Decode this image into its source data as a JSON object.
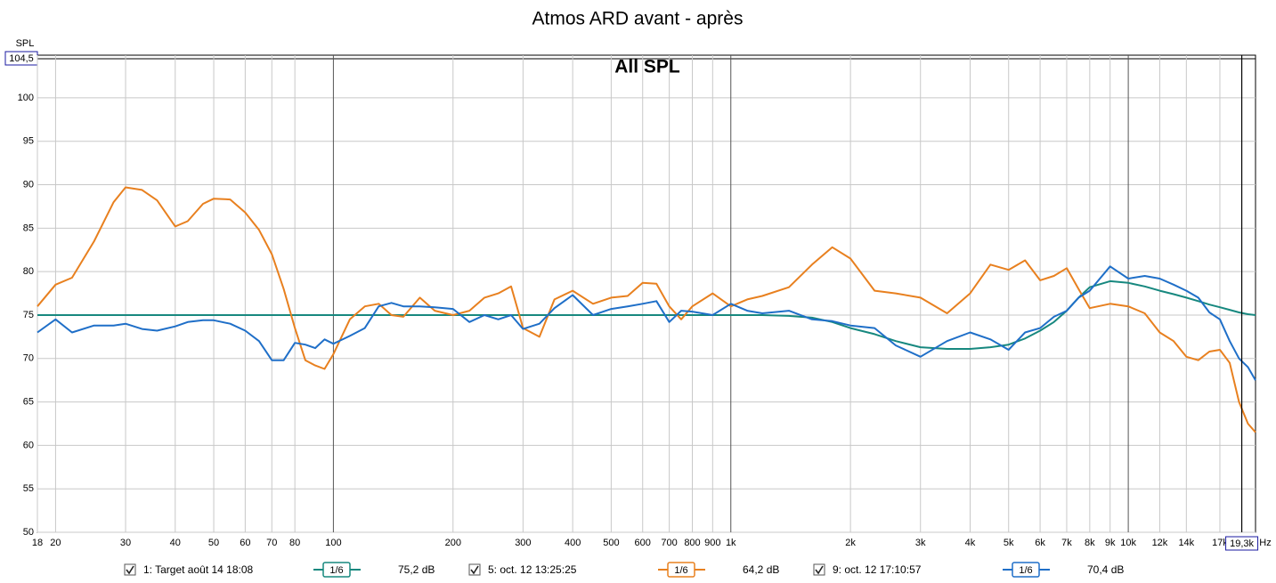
{
  "chart_data": {
    "type": "line",
    "title": "Atmos ARD avant - après",
    "annotation": "All SPL",
    "y_label": "SPL",
    "x_label": "Hz",
    "x_log": true,
    "grid": true,
    "xlim": [
      18,
      20900
    ],
    "ylim": [
      50,
      104.5
    ],
    "yticks": [
      50,
      55,
      60,
      65,
      70,
      75,
      80,
      85,
      90,
      95,
      100
    ],
    "y_readout": {
      "value": 104.5,
      "label": "104,5"
    },
    "x_cursor": {
      "value": 19300,
      "label": "19,3k"
    },
    "xticks": [
      18,
      20,
      30,
      40,
      50,
      60,
      70,
      80,
      100,
      200,
      300,
      400,
      500,
      600,
      700,
      800,
      900,
      {
        "value": 1000,
        "label": "1k"
      },
      {
        "value": 2000,
        "label": "2k"
      },
      {
        "value": 3000,
        "label": "3k"
      },
      {
        "value": 4000,
        "label": "4k"
      },
      {
        "value": 5000,
        "label": "5k"
      },
      {
        "value": 6000,
        "label": "6k"
      },
      {
        "value": 7000,
        "label": "7k"
      },
      {
        "value": 8000,
        "label": "8k"
      },
      {
        "value": 9000,
        "label": "9k"
      },
      {
        "value": 10000,
        "label": "10k"
      },
      {
        "value": 12000,
        "label": "12k",
        "muted": true
      },
      {
        "value": 14000,
        "label": "14k",
        "muted": true
      },
      {
        "value": 17000,
        "label": "17k",
        "muted": true
      }
    ],
    "x": [
      18,
      20,
      22,
      25,
      28,
      30,
      33,
      36,
      40,
      43,
      47,
      50,
      55,
      60,
      65,
      70,
      75,
      80,
      85,
      90,
      95,
      100,
      110,
      120,
      130,
      140,
      150,
      165,
      180,
      200,
      220,
      240,
      260,
      280,
      300,
      330,
      360,
      400,
      450,
      500,
      550,
      600,
      650,
      700,
      750,
      800,
      900,
      1000,
      1100,
      1200,
      1400,
      1600,
      1800,
      2000,
      2300,
      2600,
      3000,
      3500,
      4000,
      4500,
      5000,
      5500,
      6000,
      6500,
      7000,
      7500,
      8000,
      9000,
      10000,
      11000,
      12000,
      13000,
      14000,
      15000,
      16000,
      17000,
      18000,
      19000,
      20000,
      20900
    ],
    "series": [
      {
        "name": "1: Target août 14 18:08",
        "color": "#17887f",
        "smoothing": "1/6",
        "level": "75,2 dB",
        "values": [
          75,
          75,
          75,
          75,
          75,
          75,
          75,
          75,
          75,
          75,
          75,
          75,
          75,
          75,
          75,
          75,
          75,
          75,
          75,
          75,
          75,
          75,
          75,
          75,
          75,
          75,
          75,
          75,
          75,
          75,
          75,
          75,
          75,
          75,
          75,
          75,
          75,
          75,
          75,
          75,
          75,
          75,
          75,
          75,
          75,
          75,
          75,
          75,
          75,
          75,
          74.9,
          74.7,
          74.2,
          73.5,
          72.8,
          72,
          71.3,
          71.1,
          71.1,
          71.3,
          71.6,
          72.3,
          73.2,
          74.2,
          75.5,
          77,
          78.2,
          78.9,
          78.7,
          78.3,
          77.8,
          77.4,
          77,
          76.6,
          76.2,
          75.9,
          75.6,
          75.3,
          75.1,
          75
        ]
      },
      {
        "name": "5: oct. 12 13:25:25",
        "color": "#e8801f",
        "smoothing": "1/6",
        "level": "64,2 dB",
        "values": [
          76,
          78.5,
          79.3,
          83.5,
          88,
          89.7,
          89.4,
          88.2,
          85.2,
          85.8,
          87.8,
          88.4,
          88.3,
          86.8,
          84.8,
          82,
          78,
          73.5,
          69.8,
          69.2,
          68.8,
          70.5,
          74.5,
          76,
          76.3,
          75,
          74.8,
          77,
          75.5,
          75,
          75.5,
          77,
          77.5,
          78.3,
          73.5,
          72.5,
          76.8,
          77.8,
          76.3,
          77,
          77.2,
          78.7,
          78.6,
          76,
          74.5,
          76,
          77.5,
          76,
          76.8,
          77.2,
          78.2,
          80.8,
          82.8,
          81.5,
          77.8,
          77.5,
          77,
          75.2,
          77.5,
          80.8,
          80.2,
          81.3,
          79,
          79.5,
          80.4,
          78,
          75.8,
          76.3,
          76,
          75.2,
          73,
          72,
          70.2,
          69.8,
          70.8,
          71,
          69.5,
          65,
          62.5,
          61.5
        ]
      },
      {
        "name": "9: oct. 12 17:10:57",
        "color": "#1f6fc8",
        "smoothing": "1/6",
        "level": "70,4 dB",
        "values": [
          73,
          74.5,
          73,
          73.8,
          73.8,
          74,
          73.4,
          73.2,
          73.7,
          74.2,
          74.4,
          74.4,
          74,
          73.2,
          72,
          69.8,
          69.8,
          71.8,
          71.6,
          71.2,
          72.2,
          71.7,
          72.6,
          73.5,
          76,
          76.4,
          76,
          76,
          75.9,
          75.7,
          74.2,
          75,
          74.5,
          75,
          73.4,
          74,
          75.8,
          77.3,
          75,
          75.7,
          76,
          76.3,
          76.6,
          74.2,
          75.5,
          75.4,
          75,
          76.3,
          75.5,
          75.2,
          75.5,
          74.5,
          74.3,
          73.8,
          73.5,
          71.5,
          70.2,
          72,
          73,
          72.2,
          71,
          73,
          73.5,
          74.8,
          75.5,
          77,
          77.8,
          80.6,
          79.2,
          79.5,
          79.2,
          78.5,
          77.8,
          77,
          75.3,
          74.5,
          72,
          70,
          69,
          67.5
        ]
      }
    ]
  }
}
